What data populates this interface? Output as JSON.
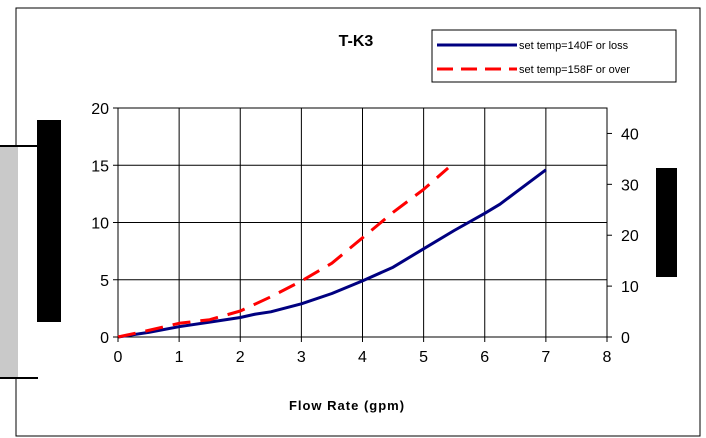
{
  "chart_data": {
    "type": "line",
    "title": "T-K3",
    "xlabel": "Flow Rate (gpm)",
    "ylabel": "",
    "y2label": "",
    "xlim": [
      0,
      8
    ],
    "ylim": [
      0,
      20
    ],
    "y2lim": [
      0,
      45
    ],
    "x_ticks": [
      "0",
      "1",
      "2",
      "3",
      "4",
      "5",
      "6",
      "7",
      "8"
    ],
    "y_ticks": [
      "0",
      "5",
      "10",
      "15",
      "20"
    ],
    "y2_ticks": [
      "0",
      "10",
      "20",
      "30",
      "40"
    ],
    "grid": true,
    "legend_position": "top-right",
    "series": [
      {
        "name": "set temp=140F or loss",
        "color": "#000080",
        "style": "solid",
        "axis": "left",
        "x": [
          0,
          0.5,
          1,
          1.5,
          2,
          2.25,
          2.5,
          3,
          3.5,
          4,
          4.5,
          5,
          5.5,
          6,
          6.25,
          6.5,
          7
        ],
        "y": [
          0,
          0.4,
          0.9,
          1.3,
          1.7,
          2.0,
          2.2,
          2.9,
          3.8,
          4.9,
          6.1,
          7.7,
          9.3,
          10.8,
          11.6,
          12.6,
          14.6
        ]
      },
      {
        "name": "set temp=158F or over",
        "color": "#ff0000",
        "style": "dashed",
        "axis": "right",
        "x": [
          0,
          0.5,
          1,
          1.5,
          2,
          2.5,
          3,
          3.5,
          4,
          4.5,
          5,
          5.4
        ],
        "y": [
          0,
          1.3,
          2.7,
          3.4,
          5.1,
          7.9,
          11.0,
          14.5,
          19.5,
          24.5,
          29.0,
          33.2
        ]
      }
    ]
  }
}
